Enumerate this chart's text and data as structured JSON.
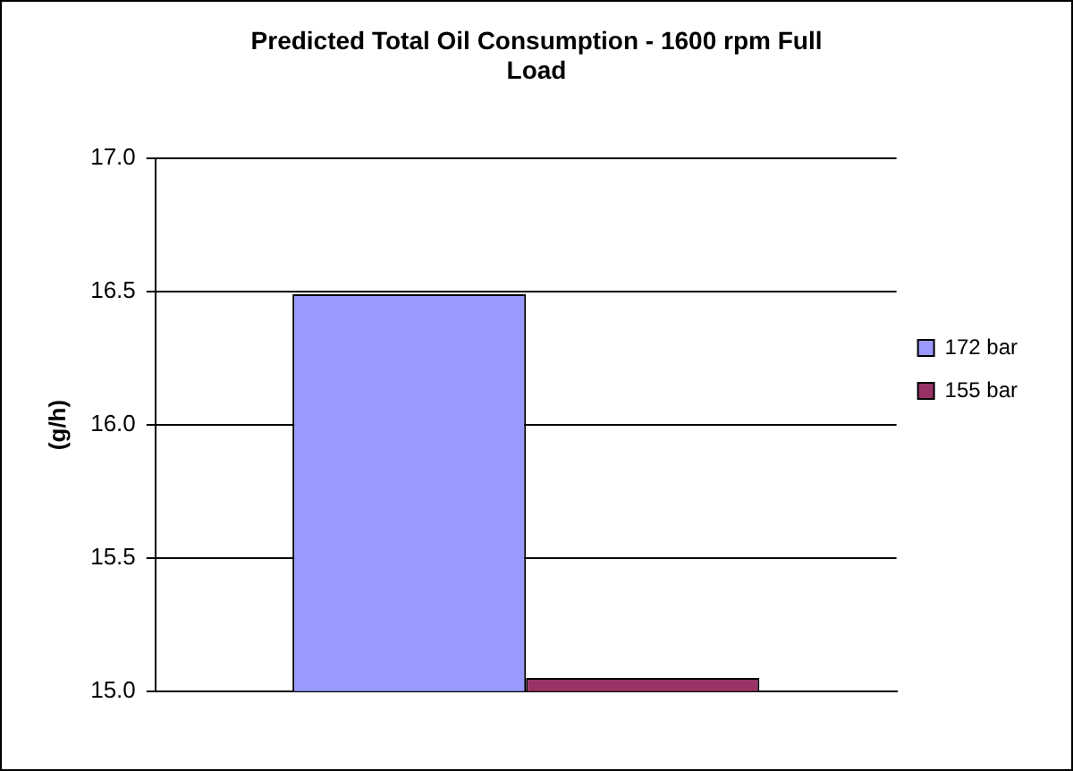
{
  "chart_data": {
    "type": "bar",
    "title": "Predicted Total Oil Consumption - 1600 rpm Full Load",
    "ylabel": "(g/h)",
    "categories": [
      null
    ],
    "series": [
      {
        "name": "172 bar",
        "color": "#9999ff",
        "values": [
          16.49
        ]
      },
      {
        "name": "155 bar",
        "color": "#993366",
        "values": [
          15.05
        ]
      }
    ],
    "ylim": [
      15,
      17
    ],
    "yticks": [
      {
        "value": 15,
        "label": "15.0"
      },
      {
        "value": 15.5,
        "label": "15.5"
      },
      {
        "value": 16,
        "label": "16.0"
      },
      {
        "value": 16.5,
        "label": "16.5"
      },
      {
        "value": 17,
        "label": "17.0"
      }
    ],
    "grid": "y",
    "legend": "right"
  }
}
